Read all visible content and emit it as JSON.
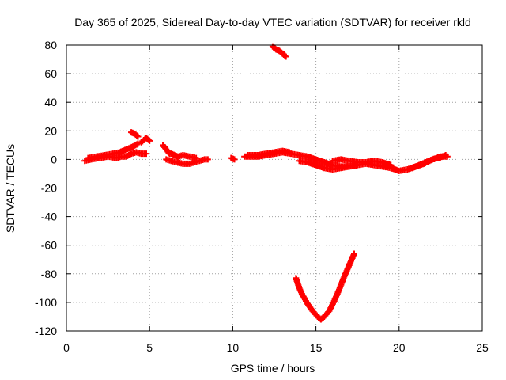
{
  "chart_data": {
    "type": "scatter",
    "title": "Day 365 of 2025, Sidereal Day-to-day VTEC variation (SDTVAR) for receiver rkld",
    "xlabel": "GPS time / hours",
    "ylabel": "SDTVAR / TECUs",
    "xlim": [
      0,
      25
    ],
    "ylim": [
      -120,
      80
    ],
    "xticks": [
      0,
      5,
      10,
      15,
      20,
      25
    ],
    "yticks": [
      -120,
      -100,
      -80,
      -60,
      -40,
      -20,
      0,
      20,
      40,
      60,
      80
    ],
    "xtick_labels": [
      "0",
      "5",
      "10",
      "15",
      "20",
      "25"
    ],
    "ytick_labels": [
      "-120",
      "-100",
      "-80",
      "-60",
      "-40",
      "-20",
      "0",
      "20",
      "40",
      "60",
      "80"
    ],
    "grid": true,
    "marker": "+",
    "series": [
      {
        "name": "SDTVAR",
        "color": "#ff0000",
        "segments": [
          {
            "x": [
              1.1,
              1.5,
              2.0,
              2.5,
              3.0,
              3.3,
              3.6,
              3.9,
              4.2,
              4.5,
              4.8
            ],
            "y": [
              -1,
              0,
              1,
              2,
              1,
              2,
              2,
              4,
              5,
              4,
              4
            ]
          },
          {
            "x": [
              1.3,
              1.8,
              2.3,
              2.8,
              3.2,
              3.6,
              4.0,
              4.3
            ],
            "y": [
              1,
              2,
              3,
              4,
              5,
              7,
              9,
              11
            ]
          },
          {
            "x": [
              3.9,
              4.1,
              4.3
            ],
            "y": [
              19,
              18,
              16
            ]
          },
          {
            "x": [
              4.5,
              4.8,
              5.0
            ],
            "y": [
              12,
              15,
              13
            ]
          },
          {
            "x": [
              5.8,
              6.0,
              6.2
            ],
            "y": [
              10,
              7,
              4
            ]
          },
          {
            "x": [
              6.0,
              6.3,
              6.6,
              7.0,
              7.4,
              7.7,
              8.0,
              8.3,
              8.5
            ],
            "y": [
              0,
              -1,
              -2,
              -3,
              -3,
              -2,
              -1,
              0,
              0
            ]
          },
          {
            "x": [
              6.3,
              6.7,
              7.0,
              7.4,
              7.8
            ],
            "y": [
              4,
              2,
              3,
              2,
              1
            ]
          },
          {
            "x": [
              9.9,
              10.1
            ],
            "y": [
              1,
              0
            ]
          },
          {
            "x": [
              10.7,
              11.0,
              11.5,
              12.0,
              12.5,
              13.0,
              13.5,
              14.0,
              14.5,
              15.0,
              15.5,
              16.0,
              16.5,
              17.0,
              17.5,
              18.0,
              18.5,
              19.0,
              19.5,
              20.0,
              20.5,
              21.0,
              21.5,
              22.0,
              22.5,
              22.9
            ],
            "y": [
              2,
              2,
              2,
              3,
              4,
              5,
              4,
              3,
              2,
              0,
              -2,
              -4,
              -5,
              -5,
              -4,
              -3,
              -4,
              -5,
              -6,
              -8,
              -7,
              -5,
              -3,
              0,
              2,
              2
            ]
          },
          {
            "x": [
              10.9,
              11.5,
              12.0,
              12.5,
              13.0,
              13.4
            ],
            "y": [
              3,
              3,
              4,
              5,
              6,
              5
            ]
          },
          {
            "x": [
              14.0,
              14.5,
              15.0,
              15.5,
              16.0,
              16.5,
              17.0,
              17.4
            ],
            "y": [
              -1,
              -2,
              -4,
              -6,
              -7,
              -6,
              -5,
              -4
            ]
          },
          {
            "x": [
              16.0,
              16.5,
              17.0,
              17.5,
              18.0,
              18.5,
              19.0,
              19.5
            ],
            "y": [
              -1,
              0,
              -1,
              -2,
              -2,
              -1,
              -2,
              -4
            ]
          },
          {
            "x": [
              20.8,
              21.2,
              21.6,
              22.0,
              22.4,
              22.8
            ],
            "y": [
              -6,
              -4,
              -2,
              0,
              1,
              3
            ]
          },
          {
            "x": [
              12.4,
              12.6,
              12.8,
              13.0,
              13.2
            ],
            "y": [
              79,
              77,
              76,
              74,
              72
            ]
          },
          {
            "x": [
              13.8,
              14.0,
              14.2,
              14.5,
              14.8,
              15.1,
              15.3,
              15.5,
              15.8,
              16.1,
              16.4,
              16.7,
              17.0,
              17.3
            ],
            "y": [
              -83,
              -90,
              -95,
              -101,
              -106,
              -110,
              -112,
              -110,
              -106,
              -99,
              -91,
              -82,
              -74,
              -66
            ]
          }
        ]
      }
    ]
  }
}
